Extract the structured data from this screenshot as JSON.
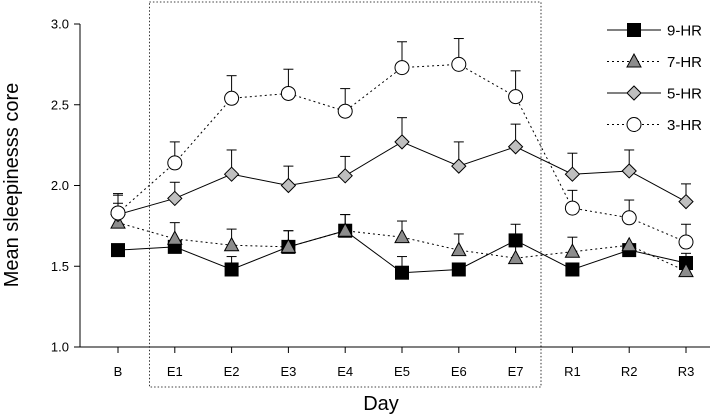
{
  "chart_data": {
    "type": "line",
    "xlabel": "Day",
    "ylabel": "Mean sleepinesss core",
    "ylim": [
      1.0,
      3.0
    ],
    "yticks": [
      "1.0",
      "1.5",
      "2.0",
      "2.5",
      "3.0"
    ],
    "categories": [
      "B",
      "E1",
      "E2",
      "E3",
      "E4",
      "E5",
      "E6",
      "E7",
      "R1",
      "R2",
      "R3"
    ],
    "highlight_box": {
      "from": "E1",
      "to": "E7"
    },
    "legend_position": "top-right",
    "series": [
      {
        "name": "9-HR",
        "marker": "square",
        "line": "solid",
        "fill": "#000000",
        "values": [
          1.6,
          1.62,
          1.48,
          1.62,
          1.72,
          1.46,
          1.48,
          1.66,
          1.48,
          1.6,
          1.52
        ],
        "errors": [
          0.0,
          0.03,
          0.08,
          0.1,
          0.1,
          0.1,
          0.0,
          0.1,
          0.0,
          0.0,
          0.06
        ]
      },
      {
        "name": "7-HR",
        "marker": "triangle",
        "line": "dotted",
        "fill": "#8c8c8c",
        "values": [
          1.77,
          1.67,
          1.63,
          1.62,
          1.72,
          1.68,
          1.6,
          1.55,
          1.59,
          1.63,
          1.47
        ],
        "errors": [
          0.12,
          0.1,
          0.1,
          0.1,
          0.1,
          0.1,
          0.1,
          0.1,
          0.09,
          0.0,
          0.0
        ]
      },
      {
        "name": "5-HR",
        "marker": "diamond",
        "line": "solid",
        "fill": "#bfbfbf",
        "values": [
          1.82,
          1.92,
          2.07,
          2.0,
          2.06,
          2.27,
          2.12,
          2.24,
          2.07,
          2.09,
          1.9
        ],
        "errors": [
          0.12,
          0.1,
          0.15,
          0.12,
          0.12,
          0.15,
          0.15,
          0.14,
          0.13,
          0.13,
          0.11
        ]
      },
      {
        "name": "3-HR",
        "marker": "circle",
        "line": "dotted",
        "fill": "#ffffff",
        "values": [
          1.83,
          2.14,
          2.54,
          2.57,
          2.46,
          2.73,
          2.75,
          2.55,
          1.86,
          1.8,
          1.65
        ],
        "errors": [
          0.12,
          0.13,
          0.14,
          0.15,
          0.14,
          0.16,
          0.16,
          0.16,
          0.11,
          0.11,
          0.11
        ]
      }
    ]
  }
}
